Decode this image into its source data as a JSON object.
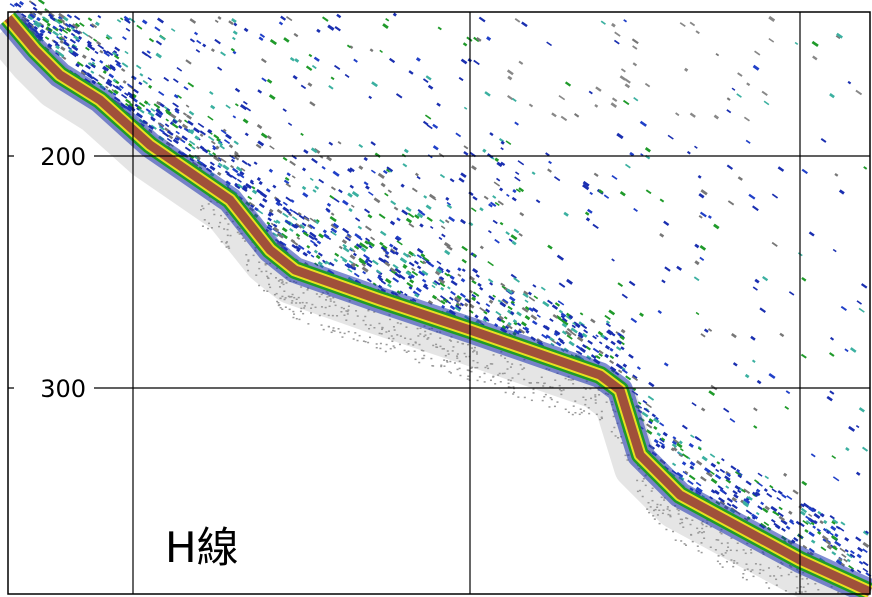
{
  "axis": {
    "ticks": [
      "200",
      "300"
    ]
  },
  "label": "H線"
}
